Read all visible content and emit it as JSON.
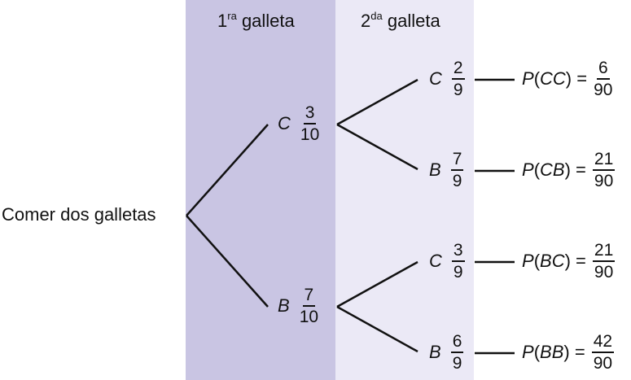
{
  "columns": {
    "first": {
      "number": "1",
      "sup": "ra",
      "word": "galleta"
    },
    "second": {
      "number": "2",
      "sup": "da",
      "word": "galleta"
    }
  },
  "root_label": "Comer dos galletas",
  "first_level": [
    {
      "label": "C",
      "num": "3",
      "den": "10"
    },
    {
      "label": "B",
      "num": "7",
      "den": "10"
    }
  ],
  "second_level": [
    {
      "label": "C",
      "num": "2",
      "den": "9"
    },
    {
      "label": "B",
      "num": "7",
      "den": "9"
    },
    {
      "label": "C",
      "num": "3",
      "den": "9"
    },
    {
      "label": "B",
      "num": "6",
      "den": "9"
    }
  ],
  "outcomes": [
    {
      "p": "P",
      "open": "(",
      "event": "CC",
      "close": ")",
      "eq": "=",
      "num": "6",
      "den": "90"
    },
    {
      "p": "P",
      "open": "(",
      "event": "CB",
      "close": ")",
      "eq": "=",
      "num": "21",
      "den": "90"
    },
    {
      "p": "P",
      "open": "(",
      "event": "BC",
      "close": ")",
      "eq": "=",
      "num": "21",
      "den": "90"
    },
    {
      "p": "P",
      "open": "(",
      "event": "BB",
      "close": ")",
      "eq": "=",
      "num": "42",
      "den": "90"
    }
  ]
}
